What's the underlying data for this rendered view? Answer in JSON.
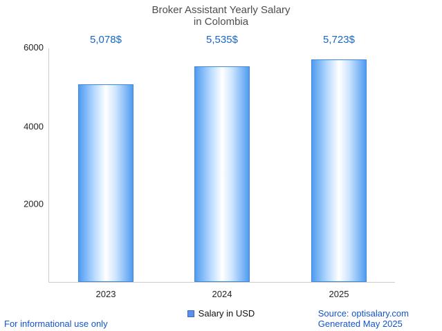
{
  "title": {
    "line1": "Broker Assistant Yearly Salary",
    "line2": "in Colombia"
  },
  "legend": {
    "label": "Salary in USD"
  },
  "footer": {
    "disclaimer": "For informational use only",
    "source": "Source: optisalary.com",
    "generated": "Generated May 2025"
  },
  "colors": {
    "value_label_blue": "#1766c2",
    "footer_link_blue": "#1155cc",
    "bar_edge_blue": "#4f9cf0",
    "bar_border_blue": "#3d87dd",
    "axis_gray": "#cccccc",
    "title_gray": "#4d4d4d"
  },
  "chart_data": {
    "type": "bar",
    "title": "Broker Assistant Yearly Salary in Colombia",
    "categories": [
      "2023",
      "2024",
      "2025"
    ],
    "series": [
      {
        "name": "Salary in USD",
        "values": [
          5078,
          5535,
          5723
        ]
      }
    ],
    "values": [
      5078,
      5535,
      5723
    ],
    "value_labels": [
      "5,078$",
      "5,535$",
      "5,723$"
    ],
    "yticks": [
      2000,
      4000,
      6000
    ],
    "ylim": [
      0,
      6000
    ],
    "xlabel": "",
    "ylabel": "",
    "grid": false,
    "legend_position": "bottom",
    "bar_centers_pct": [
      16.4,
      50,
      83.8
    ]
  }
}
